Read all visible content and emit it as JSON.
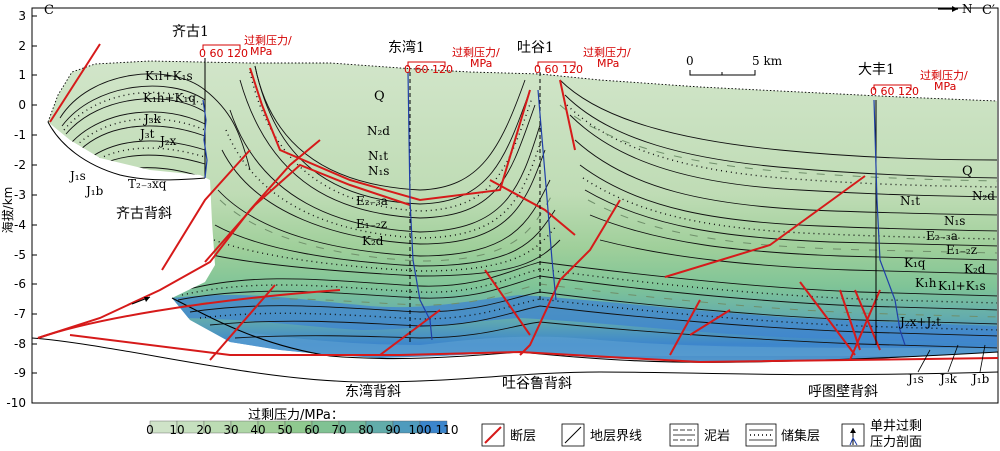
{
  "section": {
    "left_end": "C",
    "right_end": "C′",
    "north": "N",
    "ylabel": "海拔/km",
    "y_ticks": [
      "3",
      "2",
      "1",
      "0",
      "-1",
      "-2",
      "-3",
      "-4",
      "-5",
      "-6",
      "-7",
      "-8",
      "-9",
      "-10"
    ],
    "scale_zero": "0",
    "scale_five": "5 km"
  },
  "wells": [
    {
      "name": "齐古1",
      "pressure_ticks": "0  60 120",
      "pressure_unit_1": "过剩压力/",
      "pressure_unit_2": "MPa"
    },
    {
      "name": "东湾1",
      "pressure_ticks": "0  60 120",
      "pressure_unit_1": "过剩压力/",
      "pressure_unit_2": "MPa"
    },
    {
      "name": "吐谷1",
      "pressure_ticks": "0  60 120",
      "pressure_unit_1": "过剩压力/",
      "pressure_unit_2": "MPa"
    },
    {
      "name": "大丰1",
      "pressure_ticks": "0  60 120",
      "pressure_unit_1": "过剩压力/",
      "pressure_unit_2": "MPa"
    }
  ],
  "strata_left": [
    "K₁l+K₁s",
    "K₁h+K₁q",
    "J₃k",
    "J₃t",
    "J₂x",
    "J₁s",
    "J₁b",
    "T₂₋₃xq"
  ],
  "strata_center": [
    "Q",
    "N₂d",
    "N₁t",
    "N₁s",
    "E₂₋₃a",
    "E₁₋₂z",
    "K₂d"
  ],
  "strata_right": [
    "Q",
    "N₂d",
    "N₁t",
    "N₁s",
    "E₂₋₃a",
    "E₁₋₂z",
    "K₁q",
    "K₂d",
    "K₁h",
    "K₁l+K₁s",
    "J₂x+J₂t",
    "J₁s",
    "J₃k",
    "J₁b"
  ],
  "anticlines": [
    "齐古背斜",
    "东湾背斜",
    "吐谷鲁背斜",
    "呼图壁背斜"
  ],
  "legend": {
    "title": "过剩压力/MPa：",
    "scale_values": [
      "0",
      "10",
      "20",
      "30",
      "40",
      "50",
      "60",
      "70",
      "80",
      "90",
      "100",
      "110"
    ],
    "scale_colors": [
      "#cfe3c8",
      "#c6e0bf",
      "#bcdcb4",
      "#aed6a6",
      "#9fcf98",
      "#8fc98f",
      "#80c293",
      "#72b99c",
      "#62acaa",
      "#4f9bbd",
      "#3b85cc",
      "#2066c8"
    ],
    "fault": "断层",
    "boundary": "地层界线",
    "mudstone": "泥岩",
    "reservoir": "储集层",
    "well_profile_1": "单井过剩",
    "well_profile_2": "压力剖面"
  }
}
